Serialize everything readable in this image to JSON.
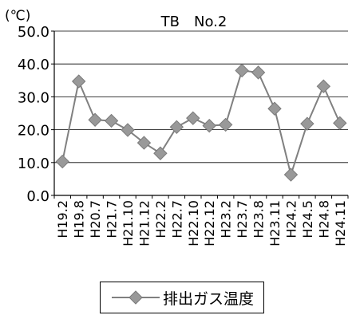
{
  "chart_data": {
    "type": "line",
    "title": "TB　No.2",
    "unit_label": "(℃)",
    "xlabel": "",
    "ylabel": "",
    "ylim": [
      0,
      50
    ],
    "yticks": [
      "0.0",
      "10.0",
      "20.0",
      "30.0",
      "40.0",
      "50.0"
    ],
    "grid": true,
    "legend_position": "bottom",
    "categories": [
      "H19.2",
      "H19.8",
      "H20.7",
      "H21.7",
      "H21.10",
      "H21.12",
      "H22.2",
      "H22.7",
      "H22.10",
      "H22.12",
      "H23.2",
      "H23.7",
      "H23.8",
      "H23.11",
      "H24.2",
      "H24.5",
      "H24.8",
      "H24.11"
    ],
    "series": [
      {
        "name": "排出ガス温度",
        "color": "#808080",
        "marker": "diamond",
        "values": [
          10.3,
          34.7,
          23.0,
          22.7,
          19.9,
          16.0,
          12.8,
          20.8,
          23.5,
          21.2,
          21.5,
          38.0,
          37.4,
          26.4,
          6.3,
          21.8,
          33.2,
          22.0
        ]
      }
    ]
  }
}
